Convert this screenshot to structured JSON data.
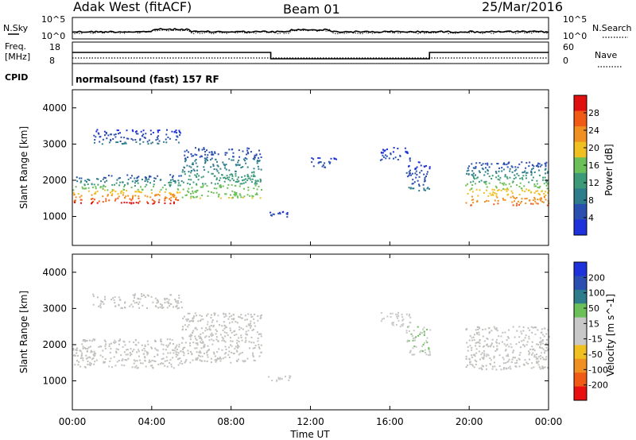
{
  "header": {
    "station": "Adak West (fitACF)",
    "beam": "Beam 01",
    "date": "25/Mar/2016"
  },
  "noise_panel": {
    "left_label": "N.Sky",
    "right_label": "N.Search",
    "left_ticks": [
      "10^5",
      "10^0"
    ],
    "right_ticks": [
      "10^5",
      "10^0"
    ]
  },
  "freq_panel": {
    "left_label_line1": "Freq.",
    "left_label_line2": "[MHz]",
    "right_label": "Nave",
    "left_ticks": [
      "18",
      "8"
    ],
    "right_ticks": [
      "60",
      "0"
    ]
  },
  "cpid_panel": {
    "label": "CPID",
    "text": "normalsound (fast) 157 RF"
  },
  "time_axis": {
    "title": "Time UT",
    "ticks": [
      "00:00",
      "04:00",
      "08:00",
      "12:00",
      "16:00",
      "20:00",
      "00:00"
    ]
  },
  "colors": {
    "power_scale": [
      "#1e32dc",
      "#2a4fb0",
      "#2e7c8c",
      "#3c9a78",
      "#6cc05a",
      "#f0c020",
      "#f09020",
      "#f05a14",
      "#e01010"
    ],
    "velocity_scale": [
      "#e81010",
      "#f05a14",
      "#f09020",
      "#f0c020",
      "#c8c8c8",
      "#c8c8c8",
      "#6cc05a",
      "#2e7c8c",
      "#2a4fb0",
      "#1e32dc"
    ],
    "ground_scatter": "#c0c0bc"
  },
  "chart_data": [
    {
      "type": "heatmap",
      "title": "Power",
      "ylabel": "Slant Range [km]",
      "xlabel": "Time UT",
      "xlim_hours": [
        0,
        24
      ],
      "ylim": [
        200,
        4500
      ],
      "yticks": [
        "4000",
        "3000",
        "2000",
        "1000"
      ],
      "colorbar": {
        "label": "Power [dB]",
        "ticks": [
          "28",
          "24",
          "20",
          "16",
          "12",
          "8",
          "4"
        ],
        "range": [
          0,
          32
        ]
      },
      "echo_regions": [
        {
          "t_start": 0.0,
          "t_end": 5.5,
          "range_low": 1350,
          "range_high": 2150,
          "power_low": 4,
          "power_high": 30
        },
        {
          "t_start": 5.5,
          "t_end": 9.5,
          "range_low": 1500,
          "range_high": 2900,
          "power_low": 4,
          "power_high": 18
        },
        {
          "t_start": 1.0,
          "t_end": 5.5,
          "range_low": 3000,
          "range_high": 3400,
          "power_low": 2,
          "power_high": 8
        },
        {
          "t_start": 9.8,
          "t_end": 11.0,
          "range_low": 980,
          "range_high": 1150,
          "power_low": 2,
          "power_high": 6
        },
        {
          "t_start": 12.0,
          "t_end": 13.3,
          "range_low": 2350,
          "range_high": 2650,
          "power_low": 2,
          "power_high": 6
        },
        {
          "t_start": 15.5,
          "t_end": 17.0,
          "range_low": 2500,
          "range_high": 2900,
          "power_low": 2,
          "power_high": 6
        },
        {
          "t_start": 16.8,
          "t_end": 18.0,
          "range_low": 1700,
          "range_high": 2500,
          "power_low": 2,
          "power_high": 8
        },
        {
          "t_start": 19.8,
          "t_end": 24.0,
          "range_low": 1300,
          "range_high": 2500,
          "power_low": 4,
          "power_high": 26
        }
      ]
    },
    {
      "type": "heatmap",
      "title": "Velocity",
      "ylabel": "Slant Range [km]",
      "xlabel": "Time UT",
      "xlim_hours": [
        0,
        24
      ],
      "ylim": [
        200,
        4500
      ],
      "yticks": [
        "4000",
        "3000",
        "2000",
        "1000"
      ],
      "colorbar": {
        "label": "Velocity [m s^-1]",
        "ticks": [
          "200",
          "100",
          "50",
          "15",
          "-15",
          "-50",
          "-100",
          "-200"
        ],
        "range": [
          -250,
          250
        ]
      },
      "echo_regions": [
        {
          "t_start": 0.0,
          "t_end": 5.5,
          "range_low": 1350,
          "range_high": 2150,
          "velocity": 0,
          "ground_scatter": true
        },
        {
          "t_start": 5.5,
          "t_end": 9.5,
          "range_low": 1500,
          "range_high": 2900,
          "velocity": 0,
          "ground_scatter": true
        },
        {
          "t_start": 1.0,
          "t_end": 5.5,
          "range_low": 3000,
          "range_high": 3400,
          "velocity": 0,
          "ground_scatter": true
        },
        {
          "t_start": 9.8,
          "t_end": 11.0,
          "range_low": 980,
          "range_high": 1150,
          "velocity": 20,
          "ground_scatter": false
        },
        {
          "t_start": 15.5,
          "t_end": 17.0,
          "range_low": 2500,
          "range_high": 2900,
          "velocity": 20,
          "ground_scatter": false
        },
        {
          "t_start": 16.8,
          "t_end": 18.0,
          "range_low": 1700,
          "range_high": 2500,
          "velocity": 40,
          "ground_scatter": false
        },
        {
          "t_start": 19.8,
          "t_end": 24.0,
          "range_low": 1300,
          "range_high": 2500,
          "velocity": 0,
          "ground_scatter": true
        }
      ]
    }
  ]
}
